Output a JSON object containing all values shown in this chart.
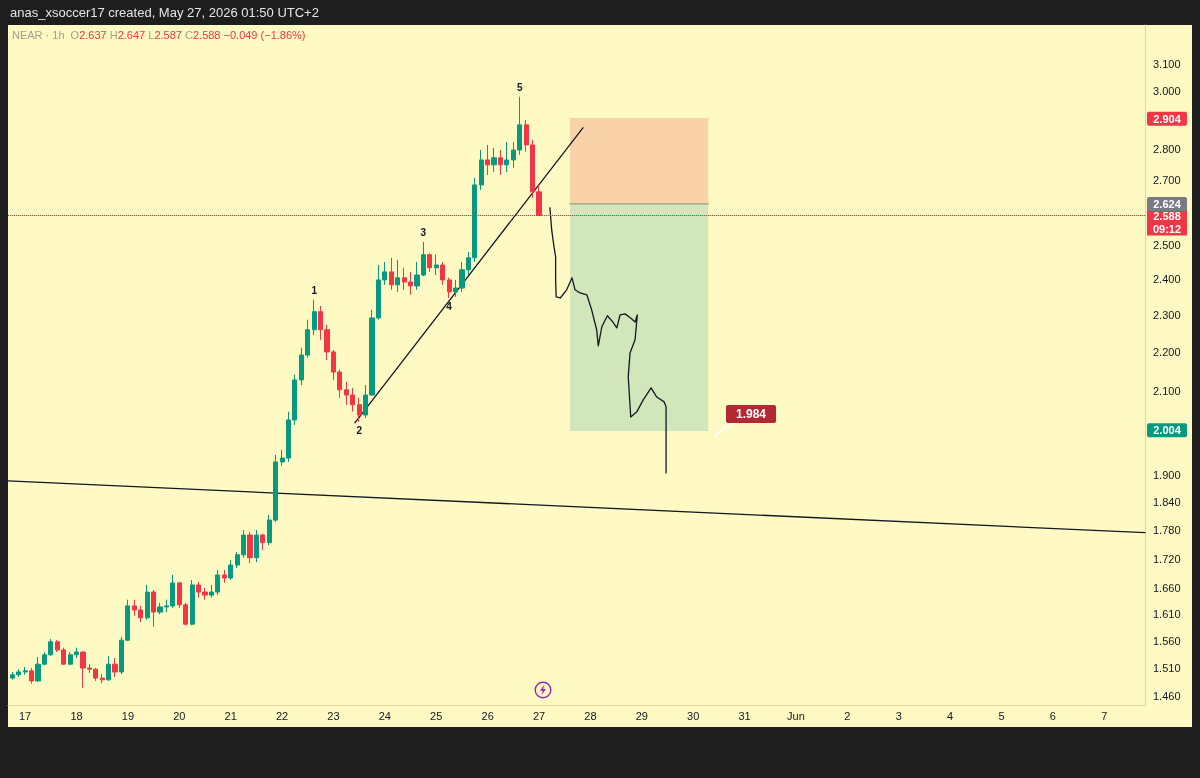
{
  "chart_data": {
    "type": "candlestick",
    "title": "anas_xsoccer17 created, May 27, 2026 01:50 UTC+2",
    "subtitle": "NEAR · 1h",
    "annotations": [
      "O2.637 H2.647 L2.587 C2.588 −0.049 (−1.86%)",
      "1.984",
      {
        "text": "2.904",
        "y": 2.904
      },
      {
        "text": "2.624",
        "y": 2.624
      },
      {
        "text": "09:12",
        "y": 2.588
      },
      {
        "text": "2.004",
        "y": 2.004
      },
      {
        "text": "1",
        "x": "2026-05-22T15:00",
        "y": 2.341
      },
      {
        "text": "2",
        "x": "2026-05-23T12:00",
        "y": 2.024
      },
      {
        "text": "3",
        "x": "2026-05-24T18:00",
        "y": 2.508
      },
      {
        "text": "4",
        "x": "2026-05-25T06:00",
        "y": 2.346
      },
      {
        "text": "5",
        "x": "2026-05-26T15:00",
        "y": 2.981
      }
    ],
    "x": [
      "2026-05-16T18:00",
      "2026-05-16T21:00",
      "2026-05-17T00:00",
      "2026-05-17T03:00",
      "2026-05-17T06:00",
      "2026-05-17T09:00",
      "2026-05-17T12:00",
      "2026-05-17T15:00",
      "2026-05-17T18:00",
      "2026-05-17T21:00",
      "2026-05-18T00:00",
      "2026-05-18T03:00",
      "2026-05-18T06:00",
      "2026-05-18T09:00",
      "2026-05-18T12:00",
      "2026-05-18T15:00",
      "2026-05-18T18:00",
      "2026-05-18T21:00",
      "2026-05-19T00:00",
      "2026-05-19T03:00",
      "2026-05-19T06:00",
      "2026-05-19T09:00",
      "2026-05-19T12:00",
      "2026-05-19T15:00",
      "2026-05-19T18:00",
      "2026-05-19T21:00",
      "2026-05-20T00:00",
      "2026-05-20T03:00",
      "2026-05-20T06:00",
      "2026-05-20T09:00",
      "2026-05-20T12:00",
      "2026-05-20T15:00",
      "2026-05-20T18:00",
      "2026-05-20T21:00",
      "2026-05-21T00:00",
      "2026-05-21T03:00",
      "2026-05-21T06:00",
      "2026-05-21T09:00",
      "2026-05-21T12:00",
      "2026-05-21T15:00",
      "2026-05-21T18:00",
      "2026-05-21T21:00",
      "2026-05-22T00:00",
      "2026-05-22T03:00",
      "2026-05-22T06:00",
      "2026-05-22T09:00",
      "2026-05-22T12:00",
      "2026-05-22T15:00",
      "2026-05-22T18:00",
      "2026-05-22T21:00",
      "2026-05-23T00:00",
      "2026-05-23T03:00",
      "2026-05-23T06:00",
      "2026-05-23T09:00",
      "2026-05-23T12:00",
      "2026-05-23T15:00",
      "2026-05-23T18:00",
      "2026-05-23T21:00",
      "2026-05-24T00:00",
      "2026-05-24T03:00",
      "2026-05-24T06:00",
      "2026-05-24T09:00",
      "2026-05-24T12:00",
      "2026-05-24T15:00",
      "2026-05-24T18:00",
      "2026-05-24T21:00",
      "2026-05-25T00:00",
      "2026-05-25T03:00",
      "2026-05-25T06:00",
      "2026-05-25T09:00",
      "2026-05-25T12:00",
      "2026-05-25T15:00",
      "2026-05-25T18:00",
      "2026-05-25T21:00",
      "2026-05-26T00:00",
      "2026-05-26T03:00",
      "2026-05-26T06:00",
      "2026-05-26T09:00",
      "2026-05-26T12:00",
      "2026-05-26T15:00",
      "2026-05-26T18:00",
      "2026-05-26T21:00",
      "2026-05-27T00:00"
    ],
    "ohlc": [
      [
        1.492,
        1.503,
        1.489,
        1.498
      ],
      [
        1.498,
        1.508,
        1.494,
        1.503
      ],
      [
        1.503,
        1.512,
        1.498,
        1.505
      ],
      [
        1.505,
        1.51,
        1.482,
        1.487
      ],
      [
        1.487,
        1.53,
        1.485,
        1.517
      ],
      [
        1.517,
        1.539,
        1.515,
        1.534
      ],
      [
        1.534,
        1.563,
        1.532,
        1.558
      ],
      [
        1.558,
        1.561,
        1.539,
        1.543
      ],
      [
        1.543,
        1.547,
        1.516,
        1.517
      ],
      [
        1.517,
        1.539,
        1.515,
        1.534
      ],
      [
        1.534,
        1.547,
        1.528,
        1.539
      ],
      [
        1.539,
        1.54,
        1.475,
        1.51
      ],
      [
        1.51,
        1.517,
        1.501,
        1.508
      ],
      [
        1.508,
        1.51,
        1.487,
        1.492
      ],
      [
        1.492,
        1.499,
        1.483,
        1.489
      ],
      [
        1.489,
        1.532,
        1.487,
        1.517
      ],
      [
        1.517,
        1.528,
        1.494,
        1.503
      ],
      [
        1.503,
        1.567,
        1.499,
        1.561
      ],
      [
        1.561,
        1.638,
        1.559,
        1.626
      ],
      [
        1.626,
        1.638,
        1.607,
        1.618
      ],
      [
        1.618,
        1.626,
        1.595,
        1.603
      ],
      [
        1.603,
        1.667,
        1.599,
        1.653
      ],
      [
        1.653,
        1.657,
        1.586,
        1.614
      ],
      [
        1.614,
        1.632,
        1.61,
        1.624
      ],
      [
        1.624,
        1.638,
        1.614,
        1.626
      ],
      [
        1.626,
        1.687,
        1.622,
        1.671
      ],
      [
        1.671,
        1.673,
        1.622,
        1.628
      ],
      [
        1.628,
        1.632,
        1.588,
        1.591
      ],
      [
        1.591,
        1.677,
        1.589,
        1.667
      ],
      [
        1.667,
        1.673,
        1.642,
        1.653
      ],
      [
        1.653,
        1.661,
        1.638,
        1.647
      ],
      [
        1.647,
        1.667,
        1.642,
        1.653
      ],
      [
        1.653,
        1.697,
        1.647,
        1.687
      ],
      [
        1.687,
        1.697,
        1.671,
        1.681
      ],
      [
        1.681,
        1.717,
        1.677,
        1.707
      ],
      [
        1.707,
        1.734,
        1.701,
        1.728
      ],
      [
        1.728,
        1.78,
        1.722,
        1.769
      ],
      [
        1.769,
        1.776,
        1.711,
        1.722
      ],
      [
        1.722,
        1.78,
        1.713,
        1.769
      ],
      [
        1.769,
        1.772,
        1.738,
        1.753
      ],
      [
        1.753,
        1.812,
        1.748,
        1.801
      ],
      [
        1.801,
        1.946,
        1.797,
        1.93
      ],
      [
        1.93,
        1.958,
        1.921,
        1.939
      ],
      [
        1.939,
        2.049,
        1.93,
        2.029
      ],
      [
        2.029,
        2.141,
        2.017,
        2.128
      ],
      [
        2.128,
        2.211,
        2.115,
        2.192
      ],
      [
        2.192,
        2.286,
        2.185,
        2.259
      ],
      [
        2.259,
        2.341,
        2.245,
        2.308
      ],
      [
        2.308,
        2.324,
        2.232,
        2.259
      ],
      [
        2.259,
        2.272,
        2.179,
        2.2
      ],
      [
        2.2,
        2.205,
        2.128,
        2.148
      ],
      [
        2.148,
        2.154,
        2.083,
        2.103
      ],
      [
        2.103,
        2.123,
        2.066,
        2.09
      ],
      [
        2.09,
        2.108,
        2.049,
        2.066
      ],
      [
        2.066,
        2.083,
        2.024,
        2.041
      ],
      [
        2.041,
        2.115,
        2.034,
        2.09
      ],
      [
        2.09,
        2.313,
        2.088,
        2.291
      ],
      [
        2.291,
        2.44,
        2.286,
        2.397
      ],
      [
        2.397,
        2.449,
        2.383,
        2.42
      ],
      [
        2.42,
        2.461,
        2.369,
        2.383
      ],
      [
        2.383,
        2.455,
        2.363,
        2.403
      ],
      [
        2.403,
        2.432,
        2.369,
        2.391
      ],
      [
        2.391,
        2.42,
        2.355,
        2.38
      ],
      [
        2.38,
        2.449,
        2.369,
        2.411
      ],
      [
        2.411,
        2.508,
        2.408,
        2.47
      ],
      [
        2.47,
        2.474,
        2.42,
        2.432
      ],
      [
        2.432,
        2.47,
        2.411,
        2.44
      ],
      [
        2.44,
        2.449,
        2.383,
        2.397
      ],
      [
        2.397,
        2.403,
        2.346,
        2.363
      ],
      [
        2.363,
        2.397,
        2.349,
        2.374
      ],
      [
        2.374,
        2.449,
        2.363,
        2.426
      ],
      [
        2.426,
        2.478,
        2.411,
        2.461
      ],
      [
        2.461,
        2.707,
        2.449,
        2.684
      ],
      [
        2.684,
        2.798,
        2.668,
        2.765
      ],
      [
        2.765,
        2.815,
        2.716,
        2.749
      ],
      [
        2.749,
        2.805,
        2.726,
        2.772
      ],
      [
        2.772,
        2.798,
        2.716,
        2.749
      ],
      [
        2.749,
        2.825,
        2.726,
        2.765
      ],
      [
        2.765,
        2.825,
        2.739,
        2.798
      ],
      [
        2.798,
        2.981,
        2.782,
        2.883
      ],
      [
        2.883,
        2.9,
        2.792,
        2.815
      ],
      [
        2.815,
        2.832,
        2.643,
        2.662
      ],
      [
        2.662,
        2.684,
        2.587,
        2.588
      ]
    ],
    "colors": [
      "#089981",
      "#089981",
      "#089981",
      "#f23645",
      "#089981",
      "#089981",
      "#089981",
      "#f23645",
      "#f23645",
      "#089981",
      "#089981",
      "#f23645",
      "#f23645",
      "#f23645",
      "#f23645",
      "#089981",
      "#f23645",
      "#089981",
      "#089981",
      "#f23645",
      "#f23645",
      "#089981",
      "#f23645",
      "#089981",
      "#089981",
      "#089981",
      "#f23645",
      "#f23645",
      "#089981",
      "#f23645",
      "#f23645",
      "#089981",
      "#089981",
      "#f23645",
      "#089981",
      "#089981",
      "#089981",
      "#f23645",
      "#089981",
      "#f23645",
      "#089981",
      "#089981",
      "#089981",
      "#089981",
      "#089981",
      "#089981",
      "#089981",
      "#089981",
      "#f23645",
      "#f23645",
      "#f23645",
      "#f23645",
      "#f23645",
      "#f23645",
      "#f23645",
      "#089981",
      "#089981",
      "#089981",
      "#089981",
      "#f23645",
      "#089981",
      "#f23645",
      "#f23645",
      "#089981",
      "#089981",
      "#f23645",
      "#089981",
      "#f23645",
      "#f23645",
      "#089981",
      "#089981",
      "#089981",
      "#089981",
      "#089981",
      "#f23645",
      "#089981",
      "#f23645",
      "#089981",
      "#089981",
      "#089981",
      "#f23645",
      "#f23645",
      "#f23645"
    ],
    "series": [
      {
        "type": "line",
        "color": "#f9d2a8",
        "x": [
          "2026-05-27T14:30",
          "2026-05-30T07:00"
        ],
        "values": [
          2.904,
          2.904
        ],
        "lower": [
          2.624,
          2.624
        ],
        "upper": [
          2.904,
          2.904
        ]
      },
      {
        "type": "line",
        "color": "#d2e6bb",
        "x": [
          "2026-05-27T14:30",
          "2026-05-30T07:00"
        ],
        "values": [
          2.004,
          2.004
        ],
        "lower": [
          2.004,
          2.004
        ],
        "upper": [
          2.624,
          2.624
        ]
      },
      {
        "type": "line",
        "color": "#9e9c8e",
        "x": [
          "2026-05-27T14:30",
          "2026-05-30T07:00"
        ],
        "values": [
          2.624,
          2.624
        ]
      },
      {
        "type": "line",
        "color": "#131722",
        "x": [
          "2026-05-23T10:00",
          "2026-05-27T20:30"
        ],
        "values": [
          2.022,
          2.873
        ]
      },
      {
        "type": "line",
        "color": "#131722",
        "x": [
          "2026-05-16T16:00",
          "2026-06-07T19:00"
        ],
        "values": [
          1.887,
          1.774
        ]
      },
      {
        "type": "line",
        "color": "#131722",
        "x": [
          "2026-05-27T05:05",
          "2026-05-27T05:55",
          "2026-05-27T07:00",
          "2026-05-27T07:45",
          "2026-05-27T07:45",
          "2026-05-27T08:00",
          "2026-05-27T09:55",
          "2026-05-27T12:55",
          "2026-05-27T15:25",
          "2026-05-27T16:50",
          "2026-05-27T19:10",
          "2026-05-27T22:20",
          "2026-05-28T00:35",
          "2026-05-28T02:55",
          "2026-05-28T03:40",
          "2026-05-28T05:20",
          "2026-05-28T07:55",
          "2026-05-28T10:25",
          "2026-05-28T12:20",
          "2026-05-28T13:50",
          "2026-05-28T16:10",
          "2026-05-28T19:20",
          "2026-05-28T20:50",
          "2026-05-28T21:55",
          "2026-05-28T20:50",
          "2026-05-28T18:30",
          "2026-05-28T17:40",
          "2026-05-28T18:50",
          "2026-05-28T21:35",
          "2026-05-29T00:40",
          "2026-05-29T04:20",
          "2026-05-29T07:00",
          "2026-05-29T10:25",
          "2026-05-29T11:20",
          "2026-05-29T11:20"
        ],
        "values": [
          2.612,
          2.544,
          2.493,
          2.464,
          2.397,
          2.349,
          2.346,
          2.369,
          2.403,
          2.369,
          2.36,
          2.355,
          2.313,
          2.259,
          2.216,
          2.267,
          2.297,
          2.28,
          2.264,
          2.299,
          2.302,
          2.288,
          2.28,
          2.299,
          2.232,
          2.197,
          2.136,
          2.036,
          2.048,
          2.078,
          2.108,
          2.085,
          2.073,
          2.061,
          1.905
        ]
      }
    ],
    "ref_lines": [
      {
        "axis": "y",
        "value": 2.588,
        "label": "2.588",
        "color": "#f23645",
        "line_style": "dotted"
      }
    ],
    "log": "y",
    "xlim": [
      "2026-05-16T16:00",
      "2026-06-07T19:00"
    ],
    "ylim": [
      1.445,
      3.247
    ],
    "xticks": [
      {
        "value": "2026-05-17",
        "label": "17"
      },
      {
        "value": "2026-05-18",
        "label": "18"
      },
      {
        "value": "2026-05-19",
        "label": "19"
      },
      {
        "value": "2026-05-20",
        "label": "20"
      },
      {
        "value": "2026-05-21",
        "label": "21"
      },
      {
        "value": "2026-05-22",
        "label": "22"
      },
      {
        "value": "2026-05-23",
        "label": "23"
      },
      {
        "value": "2026-05-24",
        "label": "24"
      },
      {
        "value": "2026-05-25",
        "label": "25"
      },
      {
        "value": "2026-05-26",
        "label": "26"
      },
      {
        "value": "2026-05-27",
        "label": "27"
      },
      {
        "value": "2026-05-28",
        "label": "28"
      },
      {
        "value": "2026-05-29",
        "label": "29"
      },
      {
        "value": "2026-05-30",
        "label": "30"
      },
      {
        "value": "2026-05-31",
        "label": "31"
      },
      {
        "value": "2026-06-01",
        "label": "Jun"
      },
      {
        "value": "2026-06-02",
        "label": "2"
      },
      {
        "value": "2026-06-03",
        "label": "3"
      },
      {
        "value": "2026-06-04",
        "label": "4"
      },
      {
        "value": "2026-06-05",
        "label": "5"
      },
      {
        "value": "2026-06-06",
        "label": "6"
      },
      {
        "value": "2026-06-07",
        "label": "7"
      }
    ],
    "yticks": [
      {
        "value": 1.46,
        "label": "1.460"
      },
      {
        "value": 1.51,
        "label": "1.510"
      },
      {
        "value": 1.56,
        "label": "1.560"
      },
      {
        "value": 1.61,
        "label": "1.610"
      },
      {
        "value": 1.66,
        "label": "1.660"
      },
      {
        "value": 1.72,
        "label": "1.720"
      },
      {
        "value": 1.78,
        "label": "1.780"
      },
      {
        "value": 1.84,
        "label": "1.840"
      },
      {
        "value": 1.9,
        "label": "1.900"
      },
      {
        "value": 2.1,
        "label": "2.100"
      },
      {
        "value": 2.2,
        "label": "2.200"
      },
      {
        "value": 2.3,
        "label": "2.300"
      },
      {
        "value": 2.4,
        "label": "2.400"
      },
      {
        "value": 2.5,
        "label": "2.500"
      },
      {
        "value": 2.7,
        "label": "2.700"
      },
      {
        "value": 2.8,
        "label": "2.800"
      },
      {
        "value": 3.0,
        "label": "3.000"
      },
      {
        "value": 3.1,
        "label": "3.100"
      }
    ]
  }
}
